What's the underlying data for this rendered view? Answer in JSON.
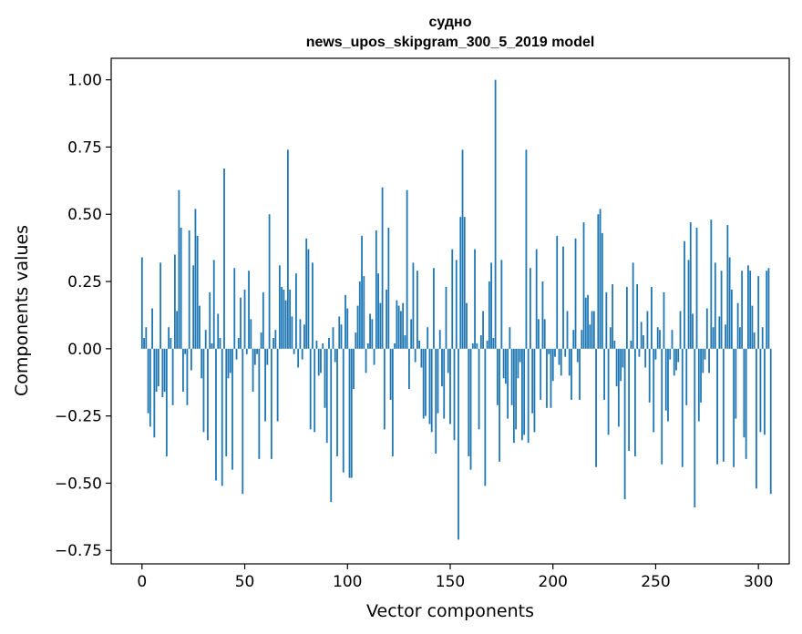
{
  "chart_data": {
    "type": "bar",
    "title": "судно",
    "subtitle": "news_upos_skipgram_300_5_2019 model",
    "xlabel": "Vector components",
    "ylabel": "Components values",
    "xlim": [
      -15,
      315
    ],
    "ylim": [
      -0.8,
      1.08
    ],
    "xticks": [
      0,
      50,
      100,
      150,
      200,
      250,
      300
    ],
    "yticks": [
      -0.75,
      -0.5,
      -0.25,
      0.0,
      0.25,
      0.5,
      0.75,
      1.0
    ],
    "ytick_labels": [
      "−0.75",
      "−0.50",
      "−0.25",
      "0.00",
      "0.25",
      "0.50",
      "0.75",
      "1.00"
    ],
    "bar_color": "#1f77b4",
    "grid": false,
    "values": [
      0.34,
      0.04,
      0.08,
      -0.24,
      -0.29,
      0.15,
      -0.33,
      -0.16,
      -0.14,
      0.32,
      -0.18,
      -0.16,
      -0.4,
      0.08,
      0.04,
      -0.21,
      0.35,
      0.14,
      0.59,
      0.45,
      -0.16,
      -0.02,
      -0.21,
      0.44,
      -0.08,
      0.31,
      0.52,
      0.42,
      0.16,
      -0.11,
      -0.31,
      0.07,
      -0.34,
      0.21,
      0.02,
      0.33,
      -0.49,
      0.13,
      0.04,
      -0.51,
      0.67,
      -0.4,
      -0.11,
      -0.09,
      -0.45,
      0.3,
      -0.04,
      0.04,
      0.19,
      -0.54,
      0.22,
      -0.02,
      0.29,
      0.11,
      -0.16,
      -0.06,
      -0.02,
      -0.41,
      0.06,
      0.21,
      -0.27,
      -0.06,
      0.5,
      -0.41,
      0.04,
      0.07,
      -0.27,
      0.31,
      0.23,
      0.22,
      0.18,
      0.74,
      0.22,
      0.12,
      -0.02,
      0.28,
      -0.07,
      0.11,
      -0.04,
      0.09,
      0.41,
      0.37,
      -0.3,
      0.32,
      -0.31,
      0.03,
      -0.1,
      -0.09,
      0.02,
      -0.22,
      -0.35,
      0.04,
      -0.57,
      0.08,
      -0.05,
      -0.4,
      0.12,
      0.09,
      -0.46,
      0.2,
      0.15,
      -0.48,
      -0.48,
      -0.15,
      0.06,
      0.16,
      0.25,
      0.42,
      0.27,
      -0.09,
      0.02,
      0.13,
      0.11,
      -0.06,
      0.44,
      0.28,
      0.17,
      0.6,
      -0.3,
      0.22,
      0.45,
      -0.19,
      -0.4,
      0.02,
      0.18,
      0.16,
      0.14,
      0.17,
      0.05,
      0.59,
      -0.15,
      0.11,
      0.32,
      -0.05,
      0.29,
      0.03,
      -0.07,
      -0.26,
      -0.25,
      0.08,
      -0.28,
      -0.31,
      0.3,
      -0.39,
      -0.24,
      0.07,
      -0.14,
      -0.26,
      0.23,
      -0.09,
      -0.28,
      0.37,
      -0.34,
      0.33,
      -0.71,
      0.49,
      0.74,
      0.49,
      0.17,
      -0.4,
      -0.45,
      0.02,
      0.37,
      0.02,
      -0.3,
      0.05,
      0.14,
      -0.51,
      0.03,
      0.25,
      0.32,
      0.04,
      1.0,
      -0.21,
      -0.42,
      0.33,
      -0.11,
      -0.13,
      -0.26,
      0.08,
      -0.21,
      -0.35,
      -0.3,
      -0.11,
      -0.05,
      -0.34,
      -0.32,
      0.74,
      -0.35,
      0.3,
      -0.24,
      -0.31,
      0.37,
      0.11,
      -0.19,
      0.25,
      0.11,
      -0.22,
      -0.02,
      -0.22,
      -0.12,
      -0.03,
      0.42,
      -0.06,
      -0.1,
      0.38,
      -0.03,
      0.14,
      -0.1,
      -0.19,
      0.07,
      0.41,
      -0.05,
      -0.19,
      0.07,
      0.47,
      0.19,
      0.2,
      0.09,
      0.14,
      0.14,
      -0.44,
      0.5,
      0.52,
      0.43,
      -0.19,
      0.21,
      -0.32,
      0.08,
      0.24,
      0.03,
      -0.14,
      -0.29,
      -0.12,
      -0.07,
      -0.56,
      0.23,
      -0.38,
      0.03,
      0.32,
      -0.4,
      0.24,
      -0.03,
      0.1,
      0.05,
      -0.07,
      0.14,
      -0.2,
      0.23,
      -0.31,
      -0.04,
      0.08,
      0.07,
      -0.43,
      0.21,
      -0.23,
      -0.27,
      -0.04,
      0.07,
      -0.1,
      -0.08,
      -0.05,
      0.14,
      -0.44,
      0.4,
      -0.21,
      0.33,
      0.47,
      0.13,
      -0.59,
      0.45,
      -0.27,
      -0.2,
      -0.09,
      -0.04,
      0.15,
      -0.09,
      0.48,
      0.08,
      0.32,
      -0.43,
      0.12,
      0.29,
      -0.42,
      0.09,
      0.46,
      0.34,
      0.22,
      -0.44,
      -0.26,
      0.17,
      0.08,
      0.29,
      -0.33,
      -0.41,
      0.31,
      0.29,
      0.16,
      0.06,
      -0.52,
      0.27,
      -0.31,
      0.08,
      -0.32,
      0.29,
      0.3,
      -0.54
    ]
  }
}
